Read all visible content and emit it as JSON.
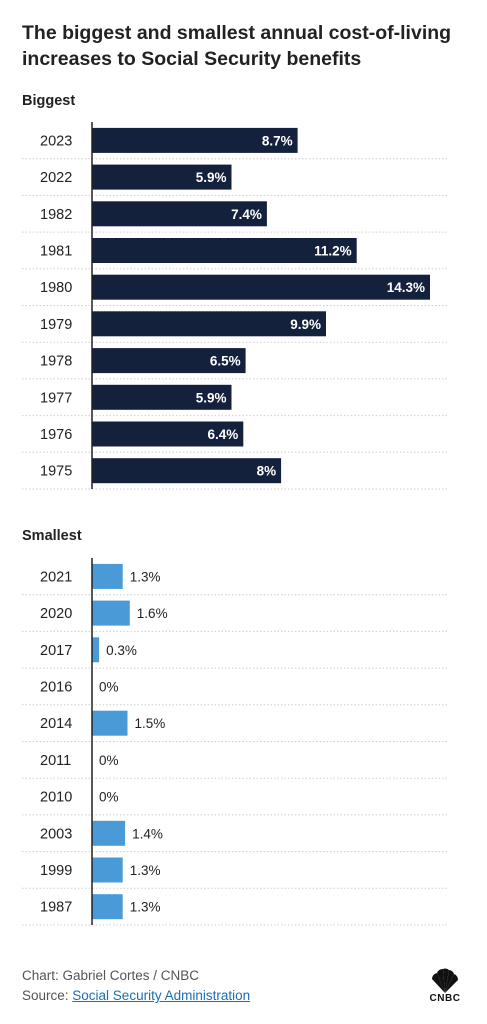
{
  "title": "The biggest and smallest annual cost-of-living increases to Social Security benefits",
  "colors": {
    "biggest_bar": "#14213d",
    "smallest_bar": "#4a9ad8",
    "axis": "#222222",
    "grid": "#cfcfcf"
  },
  "chart_data": [
    {
      "type": "bar",
      "orientation": "horizontal",
      "section_label": "Biggest",
      "categories": [
        "2023",
        "2022",
        "1982",
        "1981",
        "1980",
        "1979",
        "1978",
        "1977",
        "1976",
        "1975"
      ],
      "values": [
        8.7,
        5.9,
        7.4,
        11.2,
        14.3,
        9.9,
        6.5,
        5.9,
        6.4,
        8
      ],
      "value_labels": [
        "8.7%",
        "5.9%",
        "7.4%",
        "11.2%",
        "14.3%",
        "9.9%",
        "6.5%",
        "5.9%",
        "6.4%",
        "8%"
      ],
      "xlim": [
        0,
        14.3
      ],
      "unit": "%"
    },
    {
      "type": "bar",
      "orientation": "horizontal",
      "section_label": "Smallest",
      "categories": [
        "2021",
        "2020",
        "2017",
        "2016",
        "2014",
        "2011",
        "2010",
        "2003",
        "1999",
        "1987"
      ],
      "values": [
        1.3,
        1.6,
        0.3,
        0,
        1.5,
        0,
        0,
        1.4,
        1.3,
        1.3
      ],
      "value_labels": [
        "1.3%",
        "1.6%",
        "0.3%",
        "0%",
        "1.5%",
        "0%",
        "0%",
        "1.4%",
        "1.3%",
        "1.3%"
      ],
      "xlim": [
        0,
        14.3
      ],
      "unit": "%"
    }
  ],
  "footer": {
    "credit": "Chart: Gabriel Cortes / CNBC",
    "source_prefix": "Source: ",
    "source_link": "Social Security Administration"
  },
  "logo": {
    "icon": "peacock-icon",
    "text": "CNBC"
  }
}
